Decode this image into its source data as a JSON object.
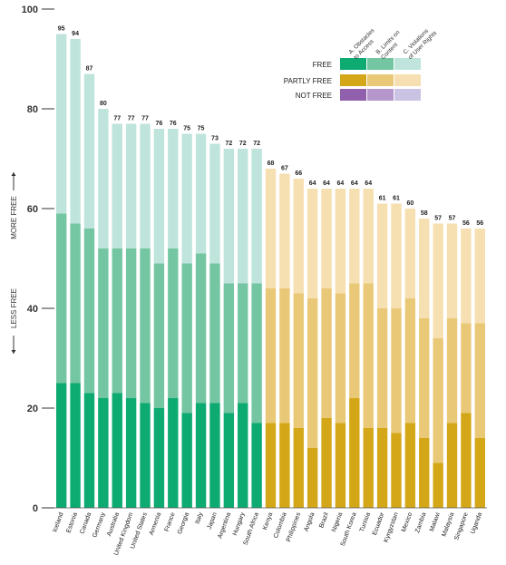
{
  "chart_data": {
    "type": "bar",
    "stacked": true,
    "ylim": [
      0,
      100
    ],
    "yticks": [
      0,
      20,
      40,
      60,
      80,
      100
    ],
    "axis_text": {
      "less": "LESS FREE",
      "more": "MORE FREE"
    },
    "categories": [
      "Iceland",
      "Estonia",
      "Canada",
      "Germany",
      "Australia",
      "United Kingdom",
      "United States",
      "Armenia",
      "France",
      "Georgia",
      "Italy",
      "Japan",
      "Argentina",
      "Hungary",
      "South Africa",
      "Kenya",
      "Colombia",
      "Philippines",
      "Angola",
      "Brazil",
      "Nigeria",
      "South Korea",
      "Tunisia",
      "Ecuador",
      "Kyrgyzstan",
      "Mexico",
      "Zambia",
      "Malawi",
      "Malaysia",
      "Singapore",
      "Uganda"
    ],
    "status": [
      "free",
      "free",
      "free",
      "free",
      "free",
      "free",
      "free",
      "free",
      "free",
      "free",
      "free",
      "free",
      "free",
      "free",
      "free",
      "partly",
      "partly",
      "partly",
      "partly",
      "partly",
      "partly",
      "partly",
      "partly",
      "partly",
      "partly",
      "partly",
      "partly",
      "partly",
      "partly",
      "partly",
      "partly"
    ],
    "totals": [
      95,
      94,
      87,
      80,
      77,
      77,
      77,
      76,
      76,
      75,
      75,
      73,
      72,
      72,
      72,
      68,
      67,
      66,
      64,
      64,
      64,
      64,
      64,
      61,
      61,
      60,
      58,
      57,
      57,
      56,
      56
    ],
    "series": [
      {
        "name": "A. Obstacles to Access",
        "values": [
          25,
          25,
          23,
          22,
          23,
          22,
          21,
          20,
          22,
          19,
          21,
          21,
          19,
          21,
          17,
          17,
          17,
          16,
          12,
          18,
          17,
          22,
          16,
          16,
          15,
          17,
          14,
          9,
          17,
          19,
          14
        ]
      },
      {
        "name": "B. Limits on Content",
        "values": [
          34,
          32,
          33,
          30,
          29,
          30,
          31,
          29,
          30,
          30,
          30,
          28,
          26,
          24,
          28,
          27,
          27,
          27,
          30,
          26,
          26,
          23,
          29,
          24,
          25,
          25,
          24,
          25,
          21,
          18,
          23
        ]
      },
      {
        "name": "C. Violations of User Rights",
        "values": [
          36,
          37,
          31,
          28,
          25,
          25,
          25,
          27,
          24,
          26,
          24,
          24,
          27,
          27,
          27,
          24,
          23,
          23,
          22,
          20,
          21,
          19,
          19,
          21,
          21,
          18,
          20,
          23,
          19,
          19,
          19
        ]
      }
    ],
    "legend": {
      "rows": [
        "FREE",
        "PARTLY FREE",
        "NOT FREE"
      ],
      "columns": [
        "A. Obstacles to Access",
        "B. Limits on Content",
        "C. Violations of User Rights"
      ],
      "placement": "top-right"
    },
    "colors": {
      "free": [
        "#0daa72",
        "#74c6a2",
        "#bfe4dc"
      ],
      "partly": [
        "#d4a718",
        "#e9c978",
        "#f6dfb1"
      ],
      "not": [
        "#9160ad",
        "#b597cb",
        "#cbc3e3"
      ]
    },
    "grid": false
  }
}
